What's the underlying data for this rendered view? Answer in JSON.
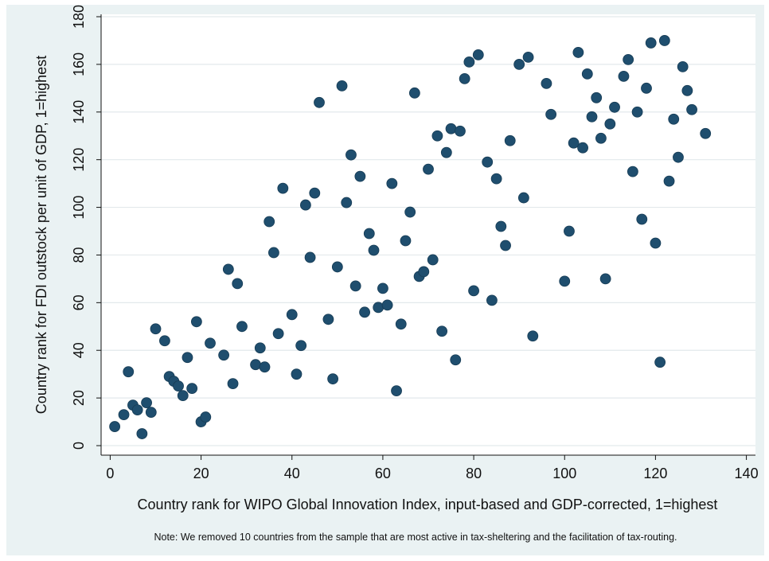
{
  "chart_data": {
    "type": "scatter",
    "title": "",
    "xlabel": "Country rank for WIPO Global Innovation Index, input-based and GDP-corrected, 1=highest",
    "ylabel": "Country rank for FDI outstock per unit of GDP, 1=highest",
    "note": "Note: We removed 10 countries from the sample that are most active in tax-sheltering and the facilitation of tax-routing.",
    "xlim": [
      -2,
      142
    ],
    "ylim": [
      -4,
      181
    ],
    "xticks": [
      0,
      20,
      40,
      60,
      80,
      100,
      120,
      140
    ],
    "yticks": [
      0,
      20,
      40,
      60,
      80,
      100,
      120,
      140,
      160,
      180
    ],
    "grid": "horizontal",
    "marker_color": "#1f4e6e",
    "background_color": "#eaf2f3",
    "plot_background": "#ffffff",
    "points": [
      [
        1,
        8
      ],
      [
        3,
        13
      ],
      [
        4,
        31
      ],
      [
        5,
        17
      ],
      [
        6,
        15
      ],
      [
        7,
        5
      ],
      [
        8,
        18
      ],
      [
        9,
        14
      ],
      [
        10,
        49
      ],
      [
        12,
        44
      ],
      [
        13,
        29
      ],
      [
        14,
        27
      ],
      [
        15,
        25
      ],
      [
        16,
        21
      ],
      [
        17,
        37
      ],
      [
        18,
        24
      ],
      [
        19,
        52
      ],
      [
        20,
        10
      ],
      [
        21,
        12
      ],
      [
        22,
        43
      ],
      [
        25,
        38
      ],
      [
        26,
        74
      ],
      [
        27,
        26
      ],
      [
        28,
        68
      ],
      [
        29,
        50
      ],
      [
        32,
        34
      ],
      [
        33,
        41
      ],
      [
        34,
        33
      ],
      [
        35,
        94
      ],
      [
        36,
        81
      ],
      [
        37,
        47
      ],
      [
        38,
        108
      ],
      [
        40,
        55
      ],
      [
        41,
        30
      ],
      [
        42,
        42
      ],
      [
        43,
        101
      ],
      [
        44,
        79
      ],
      [
        45,
        106
      ],
      [
        46,
        144
      ],
      [
        48,
        53
      ],
      [
        49,
        28
      ],
      [
        50,
        75
      ],
      [
        51,
        151
      ],
      [
        52,
        102
      ],
      [
        53,
        122
      ],
      [
        54,
        67
      ],
      [
        55,
        113
      ],
      [
        56,
        56
      ],
      [
        57,
        89
      ],
      [
        58,
        82
      ],
      [
        59,
        58
      ],
      [
        60,
        66
      ],
      [
        61,
        59
      ],
      [
        62,
        110
      ],
      [
        63,
        23
      ],
      [
        64,
        51
      ],
      [
        65,
        86
      ],
      [
        66,
        98
      ],
      [
        67,
        148
      ],
      [
        68,
        71
      ],
      [
        69,
        73
      ],
      [
        70,
        116
      ],
      [
        71,
        78
      ],
      [
        72,
        130
      ],
      [
        73,
        48
      ],
      [
        74,
        123
      ],
      [
        75,
        133
      ],
      [
        76,
        36
      ],
      [
        77,
        132
      ],
      [
        78,
        154
      ],
      [
        79,
        161
      ],
      [
        80,
        65
      ],
      [
        81,
        164
      ],
      [
        83,
        119
      ],
      [
        84,
        61
      ],
      [
        85,
        112
      ],
      [
        86,
        92
      ],
      [
        87,
        84
      ],
      [
        88,
        128
      ],
      [
        90,
        160
      ],
      [
        91,
        104
      ],
      [
        92,
        163
      ],
      [
        93,
        46
      ],
      [
        96,
        152
      ],
      [
        97,
        139
      ],
      [
        100,
        69
      ],
      [
        101,
        90
      ],
      [
        102,
        127
      ],
      [
        103,
        165
      ],
      [
        104,
        125
      ],
      [
        105,
        156
      ],
      [
        106,
        138
      ],
      [
        107,
        146
      ],
      [
        108,
        129
      ],
      [
        109,
        70
      ],
      [
        110,
        135
      ],
      [
        111,
        142
      ],
      [
        113,
        155
      ],
      [
        114,
        162
      ],
      [
        115,
        115
      ],
      [
        116,
        140
      ],
      [
        117,
        95
      ],
      [
        118,
        150
      ],
      [
        119,
        169
      ],
      [
        120,
        85
      ],
      [
        121,
        35
      ],
      [
        122,
        170
      ],
      [
        123,
        111
      ],
      [
        124,
        137
      ],
      [
        125,
        121
      ],
      [
        126,
        159
      ],
      [
        127,
        149
      ],
      [
        128,
        141
      ],
      [
        131,
        131
      ]
    ]
  }
}
